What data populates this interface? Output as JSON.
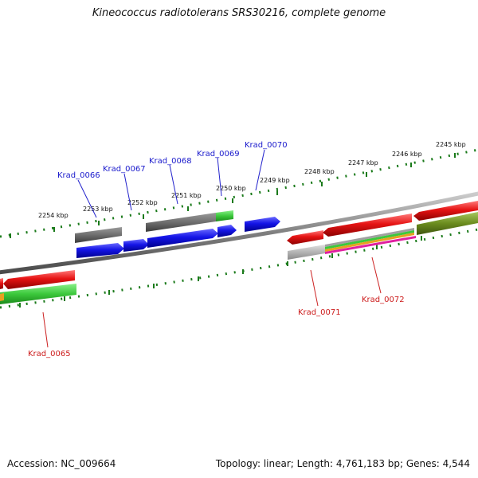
{
  "title": "Kineococcus radiotolerans SRS30216, complete genome",
  "footer": {
    "accession": "Accession: NC_009664",
    "summary": "Topology: linear; Length: 4,761,183 bp; Genes: 4,544"
  },
  "scale": {
    "tick_labels": [
      "2254 kbp",
      "2253 kbp",
      "2252 kbp",
      "2251 kbp",
      "2250 kbp",
      "2249 kbp",
      "2248 kbp",
      "2247 kbp",
      "2246 kbp",
      "2245 kbp"
    ]
  },
  "gene_labels": {
    "forward": [
      "Krad_0066",
      "Krad_0067",
      "Krad_0068",
      "Krad_0069",
      "Krad_0070"
    ],
    "reverse": [
      "Krad_0065",
      "Krad_0071",
      "Krad_0072"
    ]
  },
  "colors": {
    "forward_label": "#1a1acc",
    "reverse_label": "#cc1a1a",
    "tick": "#1a7a1a",
    "backbone": "#808080",
    "forward_gene": "#1414e6",
    "reverse_gene": "#e61414",
    "gray_feature": "#6e6e6e",
    "green_feature": "#3cc83c",
    "olive_feature": "#6b8c1e",
    "light_gray_feature": "#b4b4b4"
  }
}
